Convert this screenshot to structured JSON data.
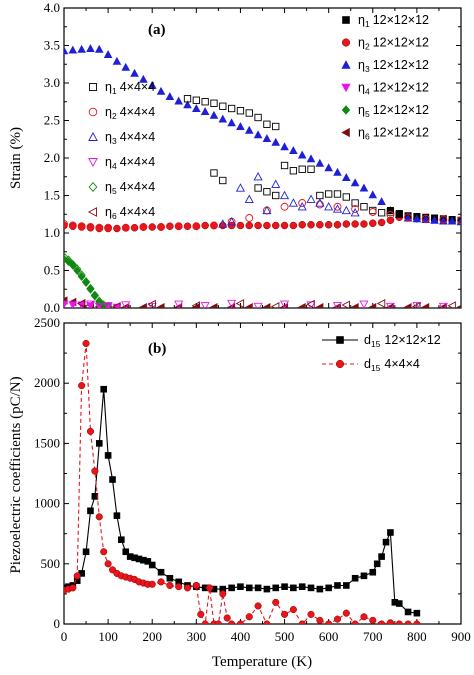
{
  "chart_data": [
    {
      "type": "scatter",
      "panel_label": "(a)",
      "ylabel": "Strain (%)",
      "xlabel": "",
      "xlim": [
        0,
        900
      ],
      "ylim": [
        0,
        4.0
      ],
      "yticks": [
        "0.0",
        "0.5",
        "1.0",
        "1.5",
        "2.0",
        "2.5",
        "3.0",
        "3.5",
        "4.0"
      ],
      "xticks": [],
      "legend_right": [
        {
          "eta": "η",
          "sub": "1",
          "size": "12×12×12",
          "marker": "square-filled",
          "color": "#000000"
        },
        {
          "eta": "η",
          "sub": "2",
          "size": "12×12×12",
          "marker": "circle-filled",
          "color": "#e8151b"
        },
        {
          "eta": "η",
          "sub": "3",
          "size": "12×12×12",
          "marker": "triangle-up-filled",
          "color": "#1f1fd6"
        },
        {
          "eta": "η",
          "sub": "4",
          "size": "12×12×12",
          "marker": "triangle-down-filled",
          "color": "#ee11ee"
        },
        {
          "eta": "η",
          "sub": "5",
          "size": "12×12×12",
          "marker": "diamond-filled",
          "color": "#118811"
        },
        {
          "eta": "η",
          "sub": "6",
          "size": "12×12×12",
          "marker": "triangle-left-filled",
          "color": "#7a0f12"
        }
      ],
      "legend_left": [
        {
          "eta": "η",
          "sub": "1",
          "size": "4×4×4",
          "marker": "square-open",
          "color": "#000000"
        },
        {
          "eta": "η",
          "sub": "2",
          "size": "4×4×4",
          "marker": "circle-open",
          "color": "#e8151b"
        },
        {
          "eta": "η",
          "sub": "3",
          "size": "4×4×4",
          "marker": "triangle-up-open",
          "color": "#1f1fd6"
        },
        {
          "eta": "η",
          "sub": "4",
          "size": "4×4×4",
          "marker": "triangle-down-open",
          "color": "#ee11ee"
        },
        {
          "eta": "η",
          "sub": "5",
          "size": "4×4×4",
          "marker": "diamond-open",
          "color": "#118811"
        },
        {
          "eta": "η",
          "sub": "6",
          "size": "4×4×4",
          "marker": "triangle-left-open",
          "color": "#7a0f12"
        }
      ],
      "series": [
        {
          "id": "eta3_12",
          "marker": "triangle-up-filled",
          "color": "#1f1fd6",
          "x": [
            0,
            20,
            40,
            60,
            80,
            100,
            120,
            140,
            160,
            180,
            200,
            220,
            240,
            260,
            280,
            300,
            320,
            340,
            360,
            380,
            400,
            420,
            440,
            460,
            480,
            500,
            520,
            540,
            560,
            580,
            600,
            620,
            640,
            660,
            680,
            700,
            720,
            740,
            760
          ],
          "y": [
            3.43,
            3.44,
            3.45,
            3.46,
            3.45,
            3.38,
            3.29,
            3.21,
            3.13,
            3.05,
            2.97,
            2.89,
            2.82,
            2.76,
            2.71,
            2.66,
            2.62,
            2.57,
            2.52,
            2.47,
            2.42,
            2.37,
            2.31,
            2.26,
            2.21,
            2.15,
            2.1,
            2.04,
            1.99,
            1.93,
            1.87,
            1.81,
            1.74,
            1.67,
            1.6,
            1.51,
            1.42,
            1.3,
            1.25
          ]
        },
        {
          "id": "eta2_12",
          "marker": "circle-filled",
          "color": "#e8151b",
          "x": [
            0,
            20,
            40,
            60,
            80,
            100,
            120,
            140,
            160,
            180,
            200,
            220,
            240,
            260,
            280,
            300,
            320,
            340,
            360,
            380,
            400,
            420,
            440,
            460,
            480,
            500,
            520,
            540,
            560,
            580,
            600,
            620,
            640,
            660,
            680,
            700,
            720,
            740,
            760,
            780,
            800,
            820,
            840,
            860,
            880,
            900
          ],
          "y": [
            1.1,
            1.09,
            1.08,
            1.07,
            1.06,
            1.06,
            1.06,
            1.07,
            1.07,
            1.08,
            1.08,
            1.08,
            1.09,
            1.09,
            1.09,
            1.09,
            1.1,
            1.1,
            1.1,
            1.1,
            1.1,
            1.1,
            1.1,
            1.1,
            1.1,
            1.1,
            1.1,
            1.11,
            1.11,
            1.11,
            1.11,
            1.11,
            1.12,
            1.12,
            1.12,
            1.13,
            1.14,
            1.17,
            1.21,
            1.2,
            1.19,
            1.18,
            1.18,
            1.17,
            1.17,
            1.17
          ]
        },
        {
          "id": "eta1_12",
          "marker": "square-filled",
          "color": "#000000",
          "x": [
            740,
            760,
            780,
            800,
            820,
            840,
            860,
            880,
            900
          ],
          "y": [
            1.3,
            1.26,
            1.23,
            1.22,
            1.21,
            1.2,
            1.19,
            1.18,
            1.17
          ]
        },
        {
          "id": "eta3_12_high",
          "marker": "triangle-up-filled",
          "color": "#1f1fd6",
          "x": [
            780,
            800,
            820,
            840,
            860,
            880,
            900
          ],
          "y": [
            1.2,
            1.19,
            1.18,
            1.17,
            1.16,
            1.16,
            1.15
          ]
        },
        {
          "id": "eta5_12",
          "marker": "diamond-filled",
          "color": "#118811",
          "x": [
            0,
            10,
            20,
            30,
            40,
            50,
            60,
            70,
            80,
            90,
            100
          ],
          "y": [
            0.65,
            0.62,
            0.57,
            0.5,
            0.42,
            0.34,
            0.25,
            0.16,
            0.08,
            0.03,
            0.01
          ]
        },
        {
          "id": "eta6_12",
          "marker": "triangle-left-filled",
          "color": "#7a0f12",
          "x": [
            0,
            20,
            40,
            60,
            80,
            100,
            140,
            180,
            220,
            260,
            300,
            340,
            380,
            420,
            460,
            500,
            540,
            580,
            620,
            660,
            700,
            740,
            780,
            820,
            860,
            900
          ],
          "y": [
            0.1,
            0.08,
            0.06,
            0.04,
            0.02,
            0.01,
            0.01,
            0.01,
            0.01,
            0.01,
            0.01,
            0.01,
            0.01,
            0.01,
            0.01,
            0.01,
            0.01,
            0.01,
            0.01,
            0.01,
            0.01,
            0.01,
            0.01,
            0.01,
            0.01,
            0.01
          ]
        },
        {
          "id": "eta1_4",
          "marker": "square-open",
          "color": "#000000",
          "x": [
            280,
            300,
            320,
            340,
            360,
            380,
            400,
            420,
            440,
            460,
            480,
            500,
            520,
            540,
            560,
            580,
            600,
            620,
            640,
            660,
            680,
            700,
            720,
            740,
            760
          ],
          "y": [
            2.79,
            2.77,
            2.75,
            2.73,
            2.69,
            2.66,
            2.63,
            2.6,
            2.54,
            2.45,
            2.42,
            1.9,
            1.83,
            1.85,
            1.85,
            1.5,
            1.52,
            1.52,
            1.48,
            1.4,
            1.35,
            1.3,
            1.27,
            1.28,
            1.25
          ]
        },
        {
          "id": "eta1_4_low",
          "marker": "square-open",
          "color": "#000000",
          "x": [
            340,
            360,
            440,
            460,
            480
          ],
          "y": [
            1.8,
            1.7,
            1.6,
            1.55,
            1.5
          ]
        },
        {
          "id": "eta2_4",
          "marker": "circle-open",
          "color": "#e8151b",
          "x": [
            0,
            20,
            40,
            60,
            80,
            100,
            140,
            180,
            220,
            260,
            300,
            340,
            380,
            420,
            460,
            500,
            540,
            580,
            620,
            660,
            700,
            740,
            780,
            820,
            860,
            900
          ],
          "y": [
            1.12,
            1.1,
            1.09,
            1.08,
            1.07,
            1.07,
            1.07,
            1.08,
            1.08,
            1.09,
            1.09,
            1.1,
            1.15,
            1.2,
            1.3,
            1.35,
            1.4,
            1.38,
            1.35,
            1.32,
            1.28,
            1.24,
            1.21,
            1.19,
            1.18,
            1.17
          ]
        },
        {
          "id": "eta3_4",
          "marker": "triangle-up-open",
          "color": "#1f1fd6",
          "x": [
            360,
            380,
            400,
            420,
            440,
            460,
            480,
            500,
            520,
            540,
            560,
            580,
            600,
            620,
            640,
            660
          ],
          "y": [
            1.12,
            1.15,
            1.6,
            1.45,
            1.75,
            1.3,
            1.65,
            1.5,
            1.4,
            1.35,
            1.45,
            1.4,
            1.35,
            1.32,
            1.3,
            1.27
          ]
        },
        {
          "id": "eta4_12",
          "marker": "triangle-down-filled",
          "color": "#ee11ee",
          "x": [
            0,
            20,
            40,
            60,
            80,
            100,
            120
          ],
          "y": [
            0.05,
            0.04,
            0.04,
            0.03,
            0.02,
            0.02,
            0.01
          ]
        },
        {
          "id": "eta5_4",
          "marker": "diamond-open",
          "color": "#118811",
          "x": [
            0,
            10,
            20,
            30,
            40,
            50,
            60,
            70,
            80,
            90,
            100
          ],
          "y": [
            0.68,
            0.64,
            0.58,
            0.52,
            0.44,
            0.35,
            0.26,
            0.17,
            0.09,
            0.04,
            0.02
          ]
        },
        {
          "id": "eta4_4",
          "marker": "triangle-down-open",
          "color": "#ee11ee",
          "x": [
            60,
            100,
            140,
            200,
            260,
            320,
            380,
            440,
            500,
            560,
            620,
            680,
            740,
            800,
            860
          ],
          "y": [
            0.05,
            0.03,
            0.04,
            0.02,
            0.05,
            0.03,
            0.06,
            0.02,
            0.05,
            0.04,
            0.03,
            0.05,
            0.02,
            0.03,
            0.02
          ]
        },
        {
          "id": "eta6_4",
          "marker": "triangle-left-open",
          "color": "#7a0f12",
          "x": [
            40,
            120,
            200,
            300,
            400,
            480,
            560,
            640,
            720,
            800,
            880
          ],
          "y": [
            0.06,
            0.02,
            0.05,
            0.03,
            0.06,
            0.02,
            0.05,
            0.04,
            0.06,
            0.02,
            0.03
          ]
        }
      ]
    },
    {
      "type": "line",
      "panel_label": "(b)",
      "ylabel": "Piezoelectric coefficients (pC/N)",
      "xlabel": "Temperature (K)",
      "xlim": [
        0,
        900
      ],
      "ylim": [
        0,
        2500
      ],
      "xticks": [
        "0",
        "100",
        "200",
        "300",
        "400",
        "500",
        "600",
        "700",
        "800",
        "900"
      ],
      "yticks": [
        "0",
        "500",
        "1000",
        "1500",
        "2000",
        "2500"
      ],
      "legend": [
        {
          "label_main": "d",
          "sub": "15",
          "size": "12×12×12",
          "color": "#000000",
          "marker": "square-filled",
          "dash": "solid"
        },
        {
          "label_main": "d",
          "sub": "15",
          "size": "4×4×4",
          "color": "#e8151b",
          "marker": "circle-filled",
          "dash": "dashed"
        }
      ],
      "series": [
        {
          "id": "d15_12",
          "color": "#000000",
          "marker": "square-filled",
          "dash": "solid",
          "x": [
            0,
            10,
            20,
            30,
            40,
            50,
            60,
            70,
            80,
            90,
            100,
            110,
            120,
            130,
            140,
            150,
            160,
            170,
            180,
            190,
            200,
            220,
            240,
            260,
            280,
            300,
            320,
            340,
            360,
            380,
            400,
            420,
            440,
            460,
            480,
            500,
            520,
            540,
            560,
            580,
            600,
            620,
            640,
            660,
            680,
            700,
            710,
            720,
            730,
            740,
            750,
            760,
            780,
            800
          ],
          "y": [
            300,
            310,
            320,
            360,
            420,
            600,
            940,
            1060,
            1500,
            1950,
            1400,
            1200,
            900,
            700,
            600,
            560,
            550,
            540,
            530,
            520,
            490,
            430,
            380,
            350,
            320,
            310,
            300,
            290,
            290,
            300,
            310,
            300,
            300,
            290,
            300,
            310,
            300,
            310,
            300,
            290,
            300,
            320,
            320,
            380,
            400,
            430,
            500,
            560,
            680,
            760,
            180,
            170,
            100,
            90
          ]
        },
        {
          "id": "d15_4",
          "color": "#e8151b",
          "marker": "circle-filled",
          "dash": "dashed",
          "x": [
            0,
            10,
            20,
            30,
            40,
            50,
            60,
            70,
            80,
            90,
            100,
            110,
            120,
            130,
            140,
            150,
            160,
            170,
            180,
            190,
            200,
            220,
            240,
            260,
            280,
            300,
            310,
            320,
            330,
            340,
            350,
            360,
            370,
            380,
            400,
            420,
            440,
            460,
            480,
            500,
            520,
            540,
            560,
            580,
            600,
            620,
            640,
            660,
            680,
            700,
            720,
            740,
            760,
            780,
            800
          ],
          "y": [
            280,
            290,
            300,
            400,
            1980,
            2330,
            1600,
            1270,
            890,
            600,
            500,
            450,
            420,
            400,
            390,
            380,
            370,
            350,
            340,
            330,
            330,
            350,
            320,
            310,
            300,
            320,
            80,
            0,
            300,
            0,
            0,
            250,
            50,
            0,
            0,
            60,
            150,
            0,
            180,
            80,
            120,
            0,
            80,
            30,
            0,
            40,
            90,
            0,
            60,
            30,
            0,
            10,
            0,
            0,
            0
          ]
        }
      ]
    }
  ]
}
